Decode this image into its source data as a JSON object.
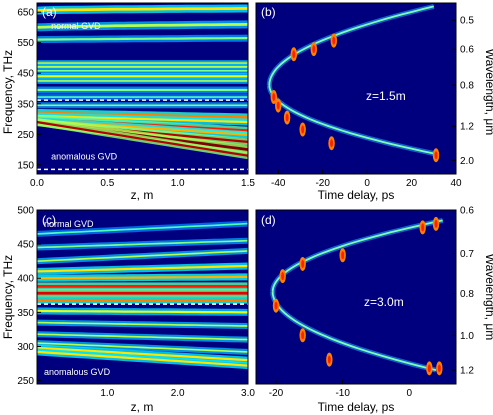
{
  "chart_data": [
    {
      "type": "heatmap",
      "panel_label": "(a)",
      "xlabel": "z, m",
      "ylabel": "Frequency, THz",
      "xlim": [
        0,
        1.5
      ],
      "ylim": [
        120,
        680
      ],
      "xticks": [
        "0.0",
        "0.5",
        "1.0",
        "1.5"
      ],
      "xtick_values": [
        0,
        0.5,
        1.0,
        1.5
      ],
      "yticks": [
        "150",
        "250",
        "350",
        "450",
        "550",
        "650"
      ],
      "ytick_values": [
        150,
        250,
        350,
        450,
        550,
        650
      ],
      "dashed_lines_y": [
        362,
        135
      ],
      "annotations": [
        {
          "text": "normal GVD",
          "x": 0.1,
          "y": 595
        },
        {
          "text": "anomalous GVD",
          "x": 0.1,
          "y": 168
        }
      ],
      "colormap": "jet",
      "bands": [
        {
          "f0": 655,
          "f1": 662,
          "grow": 2.0,
          "w": 5,
          "v": 0.65
        },
        {
          "f0": 600,
          "f1": 610,
          "grow": 1.5,
          "w": 5,
          "v": 0.55
        },
        {
          "f0": 560,
          "f1": 565,
          "grow": 1.2,
          "w": 4,
          "v": 0.5
        },
        {
          "f0": 483,
          "f1": 483,
          "grow": 1,
          "w": 3,
          "v": 0.6
        },
        {
          "f0": 470,
          "f1": 470,
          "grow": 1,
          "w": 4,
          "v": 0.55
        },
        {
          "f0": 458,
          "f1": 458,
          "grow": 1,
          "w": 3,
          "v": 0.5
        },
        {
          "f0": 440,
          "f1": 440,
          "grow": 1,
          "w": 4,
          "v": 0.6
        },
        {
          "f0": 425,
          "f1": 425,
          "grow": 1,
          "w": 3,
          "v": 0.55
        },
        {
          "f0": 395,
          "f1": 395,
          "grow": 1,
          "w": 4,
          "v": 0.5
        },
        {
          "f0": 372,
          "f1": 372,
          "grow": 1,
          "w": 3,
          "v": 0.45
        },
        {
          "f0": 345,
          "f1": 345,
          "grow": 1,
          "w": 3,
          "v": 0.5
        },
        {
          "f0": 320,
          "f1": 305,
          "grow": 1,
          "w": 5,
          "v": 0.75
        },
        {
          "f0": 310,
          "f1": 290,
          "grow": 1,
          "w": 4,
          "v": 0.65
        },
        {
          "f0": 300,
          "f1": 262,
          "grow": 1,
          "w": 5,
          "v": 0.85
        },
        {
          "f0": 295,
          "f1": 248,
          "grow": 1,
          "w": 4,
          "v": 0.7
        },
        {
          "f0": 290,
          "f1": 225,
          "grow": 1,
          "w": 4,
          "v": 0.95
        },
        {
          "f0": 290,
          "f1": 200,
          "grow": 1,
          "w": 5,
          "v": 1.0
        },
        {
          "f0": 290,
          "f1": 180,
          "grow": 1,
          "w": 4,
          "v": 0.95
        }
      ]
    },
    {
      "type": "scatter",
      "panel_label": "(b)",
      "xlabel": "Time delay, ps",
      "ylabel": "Wavelength, μm",
      "xlim": [
        -50,
        40
      ],
      "xticks": [
        "-40",
        "-20",
        "0",
        "20",
        "40"
      ],
      "xtick_values": [
        -40,
        -20,
        0,
        20,
        40
      ],
      "yticks": [
        "0.5",
        "0.6",
        "0.8",
        "1.2",
        "2.0"
      ],
      "ytick_positions": [
        0.1,
        0.27,
        0.48,
        0.72,
        0.92
      ],
      "annotation": "z=1.5m",
      "curve": {
        "vertex_delay": -44,
        "vertex_pos": 0.48,
        "top_delay": 30,
        "top_pos": 0.02,
        "bottom_delay": 30,
        "bottom_pos": 0.88
      },
      "solitons": [
        {
          "t": 31,
          "pos": 0.89
        },
        {
          "t": -16,
          "pos": 0.82
        },
        {
          "t": -29,
          "pos": 0.74
        },
        {
          "t": -36,
          "pos": 0.67
        },
        {
          "t": -40,
          "pos": 0.6
        },
        {
          "t": -42,
          "pos": 0.55
        },
        {
          "t": -24,
          "pos": 0.27
        },
        {
          "t": -33,
          "pos": 0.3
        },
        {
          "t": -15,
          "pos": 0.22
        }
      ]
    },
    {
      "type": "heatmap",
      "panel_label": "(c)",
      "xlabel": "z, m",
      "ylabel": "Frequency, THz",
      "xlim": [
        0,
        3.0
      ],
      "ylim": [
        245,
        500
      ],
      "xticks": [
        "1.0",
        "2.0",
        "3.0"
      ],
      "xtick_values": [
        1.0,
        2.0,
        3.0
      ],
      "yticks": [
        "250",
        "300",
        "350",
        "400",
        "450",
        "500"
      ],
      "ytick_values": [
        250,
        300,
        350,
        400,
        450,
        500
      ],
      "dashed_lines_y": [
        362
      ],
      "annotations": [
        {
          "text": "normal GVD",
          "x": 0.1,
          "y": 475
        },
        {
          "text": "anomalous GVD",
          "x": 0.1,
          "y": 258
        }
      ],
      "colormap": "jet",
      "bands": [
        {
          "f0": 465,
          "f1": 480,
          "grow": 1,
          "w": 3,
          "v": 0.45
        },
        {
          "f0": 445,
          "f1": 455,
          "grow": 1,
          "w": 3,
          "v": 0.5
        },
        {
          "f0": 425,
          "f1": 440,
          "grow": 1,
          "w": 3,
          "v": 0.55
        },
        {
          "f0": 410,
          "f1": 418,
          "grow": 1,
          "w": 4,
          "v": 0.65
        },
        {
          "f0": 400,
          "f1": 402,
          "grow": 1,
          "w": 4,
          "v": 0.7
        },
        {
          "f0": 388,
          "f1": 388,
          "grow": 1,
          "w": 5,
          "v": 0.85
        },
        {
          "f0": 378,
          "f1": 378,
          "grow": 1,
          "w": 5,
          "v": 0.9
        },
        {
          "f0": 368,
          "f1": 368,
          "grow": 1,
          "w": 4,
          "v": 0.75
        },
        {
          "f0": 352,
          "f1": 350,
          "grow": 1,
          "w": 4,
          "v": 0.6
        },
        {
          "f0": 335,
          "f1": 330,
          "grow": 1,
          "w": 3,
          "v": 0.55
        },
        {
          "f0": 318,
          "f1": 310,
          "grow": 1,
          "w": 3,
          "v": 0.55
        },
        {
          "f0": 305,
          "f1": 292,
          "grow": 1,
          "w": 3,
          "v": 0.55
        },
        {
          "f0": 298,
          "f1": 280,
          "grow": 1,
          "w": 4,
          "v": 0.65
        },
        {
          "f0": 292,
          "f1": 272,
          "grow": 1,
          "w": 4,
          "v": 0.65
        }
      ]
    },
    {
      "type": "scatter",
      "panel_label": "(d)",
      "xlabel": "Time delay, ps",
      "ylabel": "Wavelength, μm",
      "xlim": [
        -23,
        7
      ],
      "xticks": [
        "-20",
        "-10",
        "0"
      ],
      "xtick_values": [
        -20,
        -10,
        0
      ],
      "yticks": [
        "0.6",
        "0.7",
        "0.8",
        "1.0",
        "1.2"
      ],
      "ytick_positions": [
        0.0,
        0.25,
        0.48,
        0.72,
        0.92
      ],
      "annotation": "z=3.0m",
      "curve": {
        "vertex_delay": -20.5,
        "vertex_pos": 0.47,
        "top_delay": 5,
        "top_pos": 0.06,
        "bottom_delay": 4,
        "bottom_pos": 0.92
      },
      "solitons": [
        {
          "t": 3,
          "pos": 0.91
        },
        {
          "t": 4.5,
          "pos": 0.91
        },
        {
          "t": -12,
          "pos": 0.86
        },
        {
          "t": -16,
          "pos": 0.72
        },
        {
          "t": -20,
          "pos": 0.55
        },
        {
          "t": -19,
          "pos": 0.38
        },
        {
          "t": -10,
          "pos": 0.26
        },
        {
          "t": -16,
          "pos": 0.31
        },
        {
          "t": 2,
          "pos": 0.1
        },
        {
          "t": 4,
          "pos": 0.08
        }
      ]
    }
  ]
}
